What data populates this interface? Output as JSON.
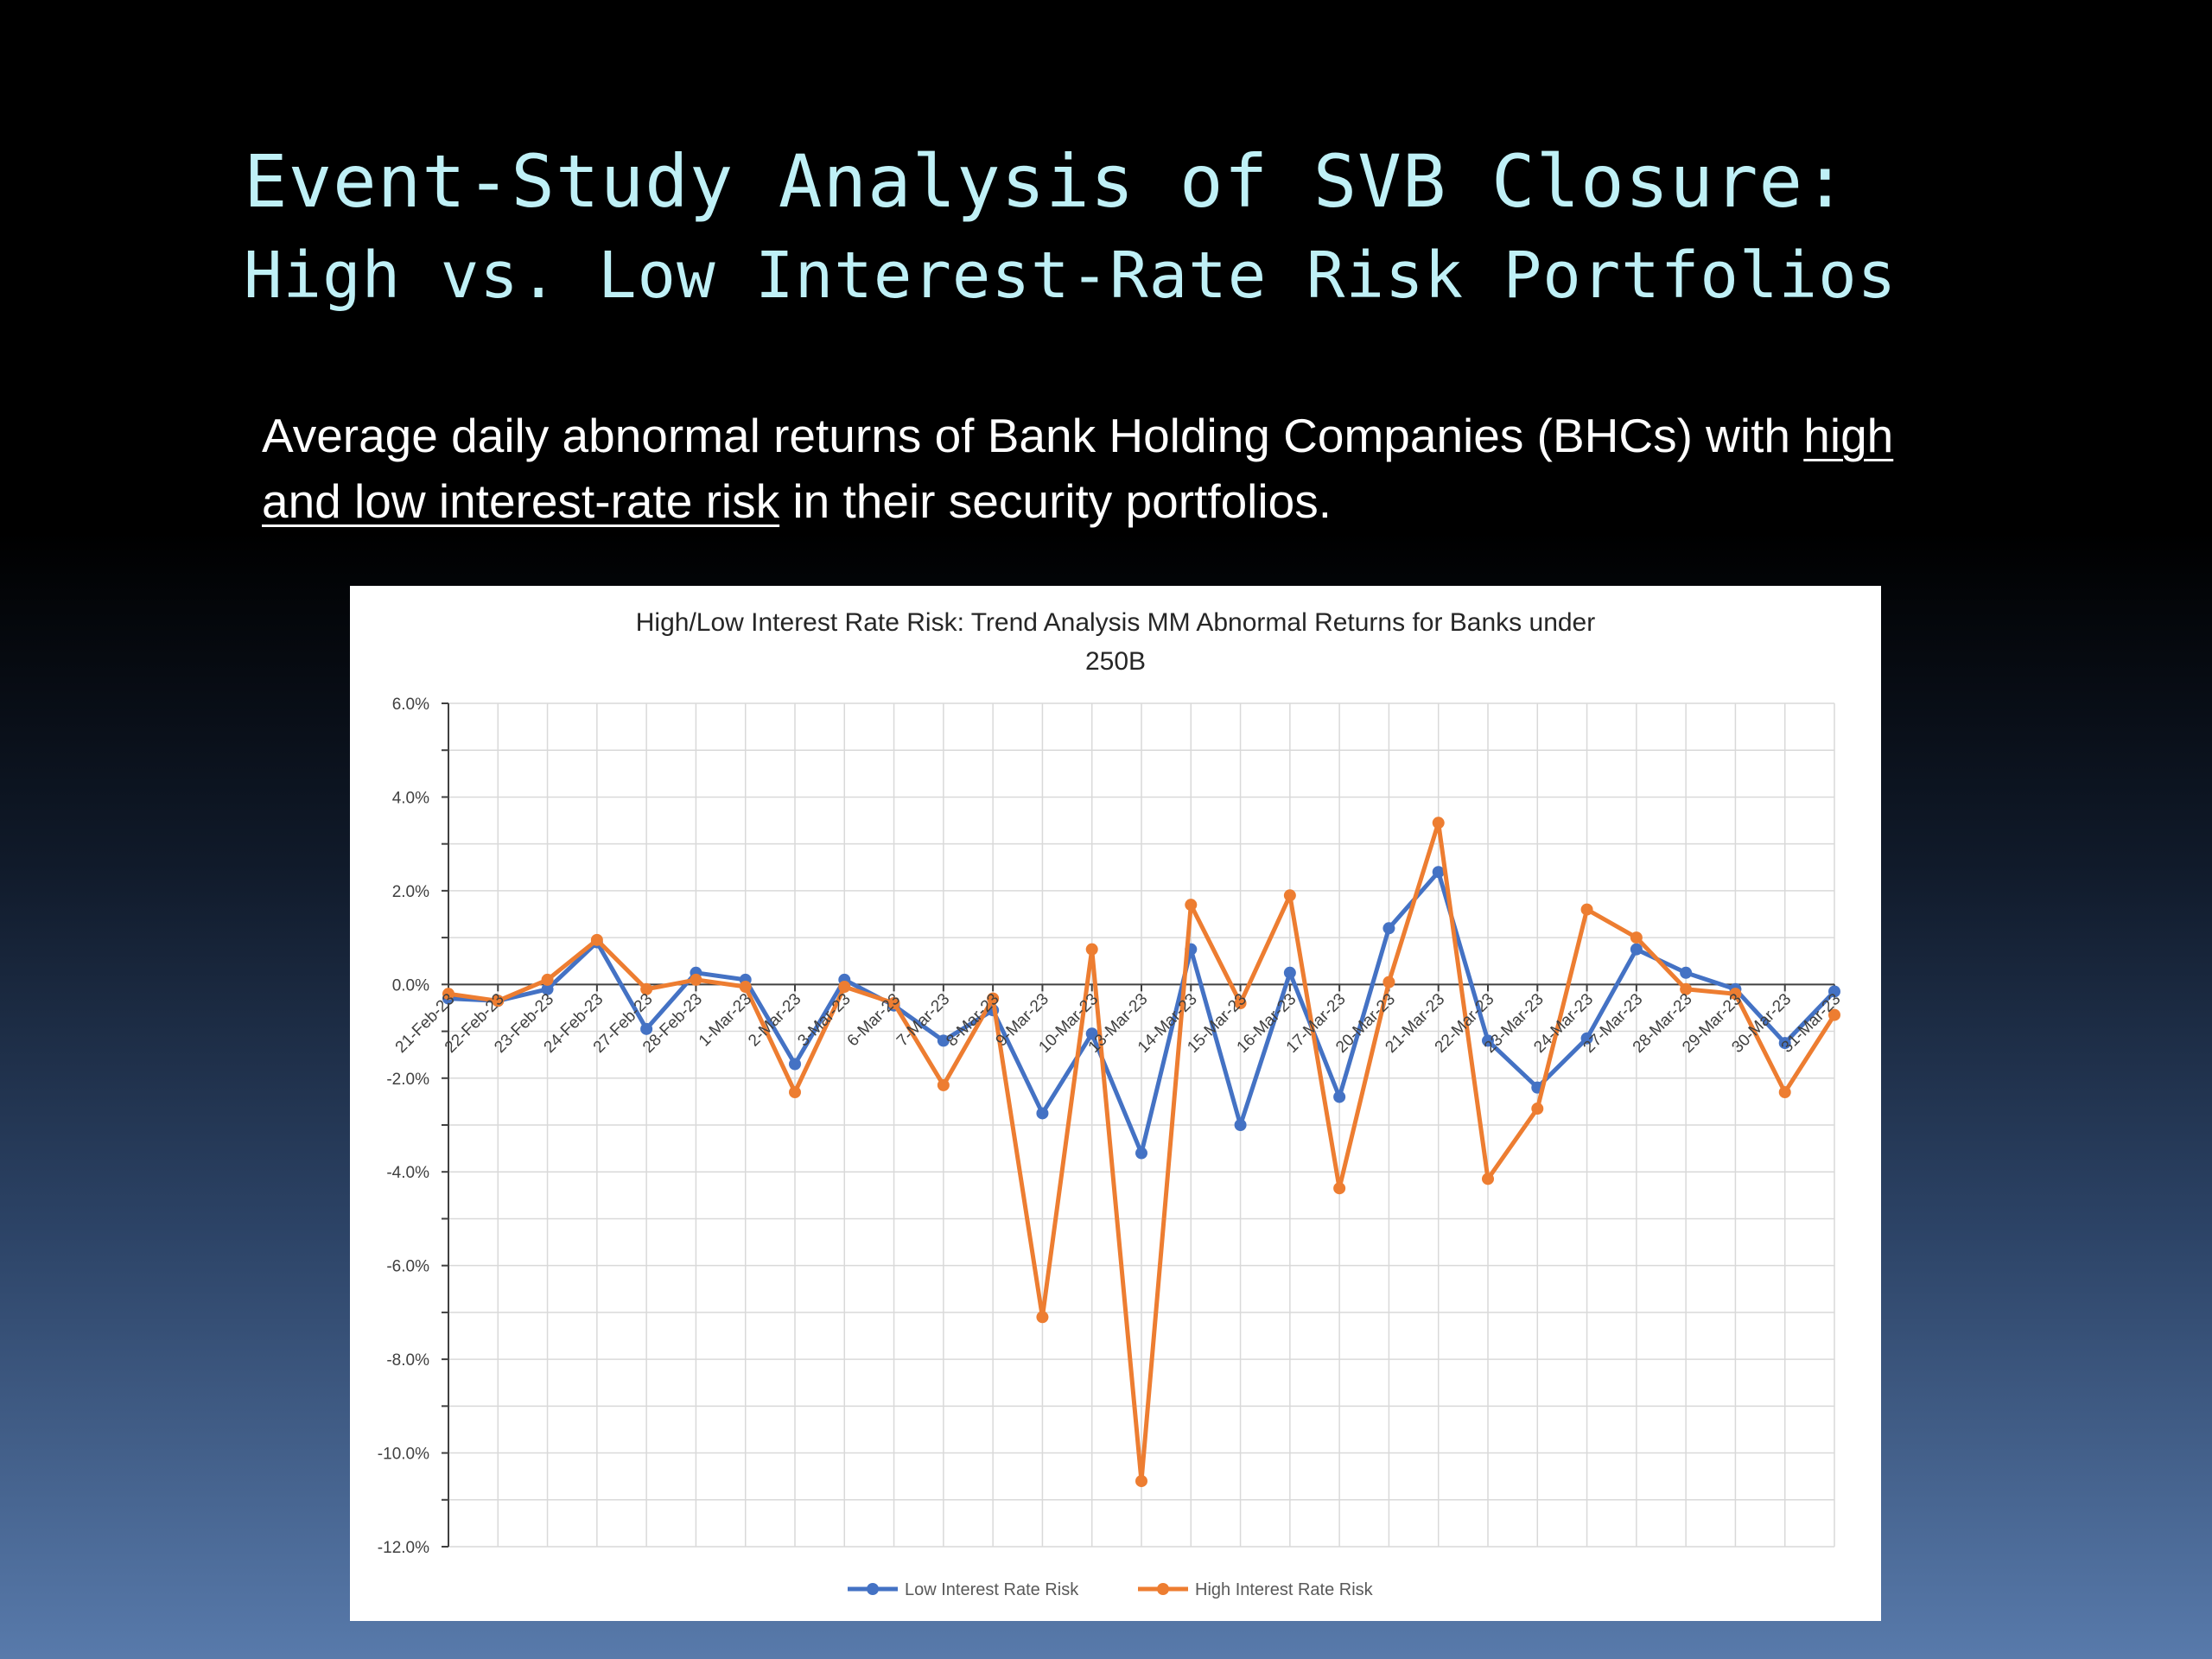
{
  "slide": {
    "title_line1": "Event-Study Analysis of SVB Closure:",
    "title_line2": "High vs. Low Interest-Rate Risk Portfolios",
    "subtitle_pre": "Average daily abnormal returns of Bank Holding Companies (BHCs) with ",
    "subtitle_underlined": "high and low interest-rate risk",
    "subtitle_post": " in their security portfolios."
  },
  "colors": {
    "low_series": "#4472c4",
    "high_series": "#ed7d31",
    "title_text": "#bff0f6",
    "grid": "#d9d9d9"
  },
  "chart_data": {
    "type": "line",
    "title_line1": "High/Low Interest Rate Risk: Trend Analysis MM Abnormal Returns for Banks under",
    "title_line2": "250B",
    "x": [
      "21-Feb-23",
      "22-Feb-23",
      "23-Feb-23",
      "24-Feb-23",
      "27-Feb-23",
      "28-Feb-23",
      "1-Mar-23",
      "2-Mar-23",
      "3-Mar-23",
      "6-Mar-23",
      "7-Mar-23",
      "8-Mar-23",
      "9-Mar-23",
      "10-Mar-23",
      "13-Mar-23",
      "14-Mar-23",
      "15-Mar-23",
      "16-Mar-23",
      "17-Mar-23",
      "20-Mar-23",
      "21-Mar-23",
      "22-Mar-23",
      "23-Mar-23",
      "24-Mar-23",
      "27-Mar-23",
      "28-Mar-23",
      "29-Mar-23",
      "30-Mar-23",
      "31-Mar-23"
    ],
    "series": [
      {
        "name": "Low Interest Rate Risk",
        "values": [
          -0.3,
          -0.35,
          -0.1,
          0.9,
          -0.95,
          0.25,
          0.1,
          -1.7,
          0.1,
          -0.45,
          -1.2,
          -0.55,
          -2.75,
          -1.05,
          -3.6,
          0.75,
          -3.0,
          0.25,
          -2.4,
          1.2,
          2.4,
          -1.2,
          -2.2,
          -1.15,
          0.75,
          0.25,
          -0.1,
          -1.25,
          -0.15
        ]
      },
      {
        "name": "High Interest Rate Risk",
        "values": [
          -0.2,
          -0.35,
          0.1,
          0.95,
          -0.1,
          0.1,
          -0.05,
          -2.3,
          -0.05,
          -0.4,
          -2.15,
          -0.3,
          -7.1,
          0.75,
          -10.6,
          1.7,
          -0.4,
          1.9,
          -4.35,
          0.05,
          3.45,
          -4.15,
          -2.65,
          1.6,
          1.0,
          -0.1,
          -0.2,
          -2.3,
          -0.65
        ]
      }
    ],
    "ylim": [
      -12,
      6
    ],
    "yticks": [
      6,
      4,
      2,
      0,
      -2,
      -4,
      -6,
      -8,
      -10,
      -12
    ],
    "ytick_labels": [
      "6.0%",
      "4.0%",
      "2.0%",
      "0.0%",
      "-2.0%",
      "-4.0%",
      "-6.0%",
      "-8.0%",
      "-10.0%",
      "-12.0%"
    ],
    "grid": true,
    "legend_position": "bottom"
  }
}
